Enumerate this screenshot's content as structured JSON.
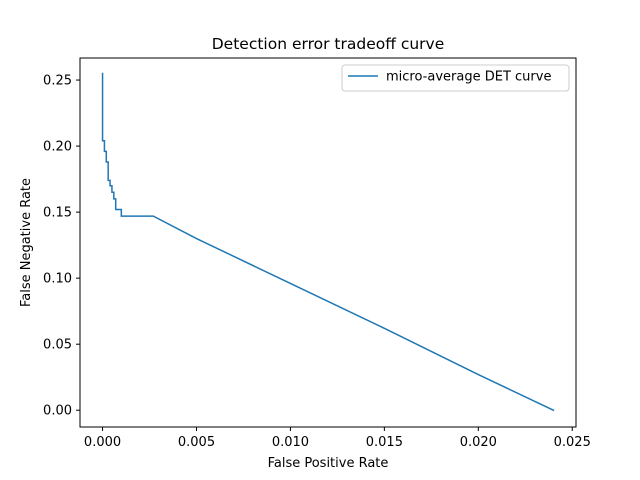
{
  "chart_data": {
    "type": "line",
    "title": "Detection error tradeoff curve",
    "xlabel": "False Positive Rate",
    "ylabel": "False Negative Rate",
    "xlim": [
      -0.0012,
      0.0252
    ],
    "ylim": [
      -0.0127,
      0.2667
    ],
    "xticks": [
      0.0,
      0.005,
      0.01,
      0.015,
      0.02,
      0.025
    ],
    "xtick_labels": [
      "0.000",
      "0.005",
      "0.010",
      "0.015",
      "0.020",
      "0.025"
    ],
    "yticks": [
      0.0,
      0.05,
      0.1,
      0.15,
      0.2,
      0.25
    ],
    "ytick_labels": [
      "0.00",
      "0.05",
      "0.10",
      "0.15",
      "0.20",
      "0.25"
    ],
    "grid": false,
    "legend": "top-right",
    "series": [
      {
        "name": "micro-average DET curve",
        "color": "#1f77b4",
        "x": [
          0.0,
          0.0,
          0.0,
          0.0,
          0.0001,
          0.0001,
          0.0002,
          0.0002,
          0.0003,
          0.0003,
          0.0004,
          0.0004,
          0.0005,
          0.0005,
          0.0006,
          0.0006,
          0.0007,
          0.0007,
          0.001,
          0.001,
          0.0027,
          0.005,
          0.01,
          0.015,
          0.02,
          0.024
        ],
        "y": [
          0.255,
          0.233,
          0.211,
          0.204,
          0.204,
          0.196,
          0.196,
          0.188,
          0.188,
          0.174,
          0.174,
          0.17,
          0.17,
          0.165,
          0.165,
          0.16,
          0.16,
          0.152,
          0.152,
          0.147,
          0.147,
          0.13,
          0.096,
          0.062,
          0.027,
          0.0
        ]
      }
    ]
  }
}
